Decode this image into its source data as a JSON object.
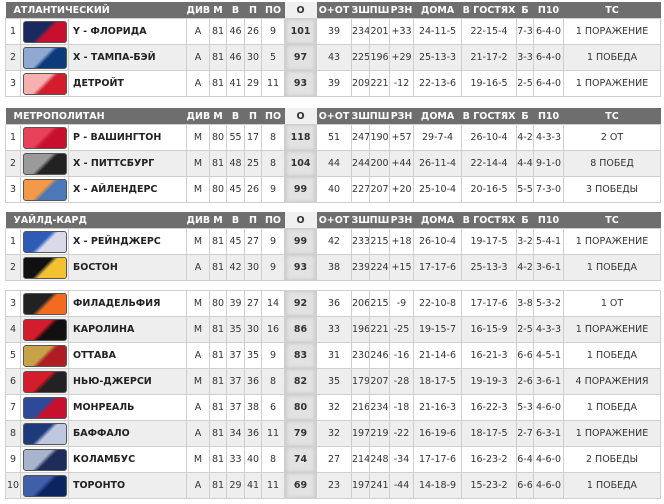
{
  "columns": [
    "ДИВ",
    "М",
    "В",
    "П",
    "ПО",
    "О",
    "О+ОТ",
    "ЗШ",
    "ПШ",
    "РЗН",
    "ДОМА",
    "В ГОСТЯХ",
    "Б",
    "П10",
    "ТС"
  ],
  "tables": [
    {
      "title": "АТЛАНТИЧЕСКИЙ",
      "show_header": true,
      "rows": [
        {
          "rank": "1",
          "team": "Y - ФЛОРИДА",
          "logo": [
            "#1b2a5e",
            "#c8102e"
          ],
          "stats": [
            "A",
            "81",
            "46",
            "26",
            "9",
            "101",
            "39",
            "234",
            "201",
            "+33",
            "24-11-5",
            "22-15-4",
            "7-3",
            "6-4-0",
            "1 ПОРАЖЕНИЕ"
          ]
        },
        {
          "rank": "2",
          "team": "X - ТАМПА-БЭЙ",
          "logo": [
            "#8fa9d4",
            "#0b3b7a"
          ],
          "stats": [
            "A",
            "81",
            "46",
            "30",
            "5",
            "97",
            "43",
            "225",
            "196",
            "+29",
            "25-13-3",
            "21-17-2",
            "3-3",
            "6-4-0",
            "1 ПОБЕДА"
          ]
        },
        {
          "rank": "3",
          "team": "ДЕТРОЙТ",
          "logo": [
            "#f7b0b0",
            "#d31c2c"
          ],
          "stats": [
            "A",
            "81",
            "41",
            "29",
            "11",
            "93",
            "39",
            "209",
            "221",
            "-12",
            "22-13-6",
            "19-16-5",
            "2-5",
            "6-4-0",
            "1 ПОРАЖЕНИЕ"
          ]
        }
      ]
    },
    {
      "title": "МЕТРОПОЛИТАН",
      "show_header": true,
      "rows": [
        {
          "rank": "1",
          "team": "P - ВАШИНГТОН",
          "logo": [
            "#e8415a",
            "#c8102e"
          ],
          "stats": [
            "M",
            "80",
            "55",
            "17",
            "8",
            "118",
            "51",
            "247",
            "190",
            "+57",
            "29-7-4",
            "26-10-4",
            "4-2",
            "4-3-3",
            "2 ОТ"
          ]
        },
        {
          "rank": "2",
          "team": "X - ПИТТСБУРГ",
          "logo": [
            "#9a9a9a",
            "#222222"
          ],
          "stats": [
            "M",
            "81",
            "48",
            "25",
            "8",
            "104",
            "44",
            "244",
            "200",
            "+44",
            "26-11-4",
            "22-14-4",
            "4-4",
            "9-1-0",
            "8 ПОБЕД"
          ]
        },
        {
          "rank": "3",
          "team": "X - АЙЛЕНДЕРС",
          "logo": [
            "#f39a4a",
            "#4d78b8"
          ],
          "stats": [
            "M",
            "80",
            "45",
            "26",
            "9",
            "99",
            "40",
            "227",
            "207",
            "+20",
            "25-10-4",
            "20-16-5",
            "5-5",
            "7-3-0",
            "3 ПОБЕДЫ"
          ]
        }
      ]
    },
    {
      "title": "УАЙЛД-КАРД",
      "show_header": true,
      "rows": [
        {
          "rank": "1",
          "team": "X - РЕЙНДЖЕРС",
          "logo": [
            "#2d5bb5",
            "#d9d9e8"
          ],
          "stats": [
            "M",
            "81",
            "45",
            "27",
            "9",
            "99",
            "42",
            "233",
            "215",
            "+18",
            "26-10-4",
            "19-17-5",
            "3-2",
            "5-4-1",
            "1 ПОРАЖЕНИЕ"
          ]
        },
        {
          "rank": "2",
          "team": "БОСТОН",
          "logo": [
            "#111111",
            "#f2c230"
          ],
          "stats": [
            "A",
            "81",
            "42",
            "30",
            "9",
            "93",
            "38",
            "239",
            "224",
            "+15",
            "17-17-6",
            "25-13-3",
            "4-2",
            "3-6-1",
            "1 ПОБЕДА"
          ]
        }
      ]
    },
    {
      "title": "",
      "show_header": false,
      "rows": [
        {
          "rank": "3",
          "team": "ФИЛАДЕЛЬФИЯ",
          "logo": [
            "#222222",
            "#f26b21"
          ],
          "stats": [
            "M",
            "80",
            "39",
            "27",
            "14",
            "92",
            "36",
            "206",
            "215",
            "-9",
            "22-10-8",
            "17-17-6",
            "3-8",
            "5-3-2",
            "1 ОТ"
          ]
        },
        {
          "rank": "4",
          "team": "КАРОЛИНА",
          "logo": [
            "#d31c2c",
            "#111111"
          ],
          "stats": [
            "M",
            "81",
            "35",
            "30",
            "16",
            "86",
            "33",
            "196",
            "221",
            "-25",
            "19-15-7",
            "16-15-9",
            "2-5",
            "4-3-3",
            "1 ПОРАЖЕНИЕ"
          ]
        },
        {
          "rank": "5",
          "team": "ОТТАВА",
          "logo": [
            "#c8a24a",
            "#b01c24"
          ],
          "stats": [
            "A",
            "81",
            "37",
            "35",
            "9",
            "83",
            "31",
            "230",
            "246",
            "-16",
            "21-14-6",
            "16-21-3",
            "6-6",
            "4-5-1",
            "1 ПОБЕДА"
          ]
        },
        {
          "rank": "6",
          "team": "НЬЮ-ДЖЕРСИ",
          "logo": [
            "#d31c2c",
            "#222222"
          ],
          "stats": [
            "M",
            "81",
            "37",
            "36",
            "8",
            "82",
            "35",
            "179",
            "207",
            "-28",
            "18-17-5",
            "19-19-3",
            "2-6",
            "3-6-1",
            "4 ПОРАЖЕНИЯ"
          ]
        },
        {
          "rank": "7",
          "team": "МОНРЕАЛЬ",
          "logo": [
            "#2d4a9a",
            "#c8102e"
          ],
          "stats": [
            "A",
            "81",
            "37",
            "38",
            "6",
            "80",
            "32",
            "216",
            "234",
            "-18",
            "21-16-3",
            "16-22-3",
            "5-3",
            "4-6-0",
            "1 ПОБЕДА"
          ]
        },
        {
          "rank": "8",
          "team": "БАФФАЛО",
          "logo": [
            "#1d3b78",
            "#c0c8e0"
          ],
          "stats": [
            "A",
            "81",
            "34",
            "36",
            "11",
            "79",
            "32",
            "197",
            "219",
            "-22",
            "16-19-6",
            "18-17-5",
            "2-7",
            "6-3-1",
            "1 ПОРАЖЕНИЕ"
          ]
        },
        {
          "rank": "9",
          "team": "КОЛАМБУС",
          "logo": [
            "#a8b4cc",
            "#1d2c5a"
          ],
          "stats": [
            "M",
            "81",
            "33",
            "40",
            "8",
            "74",
            "27",
            "214",
            "248",
            "-34",
            "17-17-6",
            "16-23-2",
            "6-4",
            "4-6-0",
            "2 ПОБЕДЫ"
          ]
        },
        {
          "rank": "10",
          "team": "ТОРОНТО",
          "logo": [
            "#3f5fa8",
            "#0b2560"
          ],
          "stats": [
            "A",
            "81",
            "29",
            "41",
            "11",
            "69",
            "23",
            "197",
            "241",
            "-44",
            "14-18-9",
            "15-23-2",
            "6-6",
            "4-6-0",
            "1 ПОБЕДА"
          ]
        }
      ]
    }
  ]
}
